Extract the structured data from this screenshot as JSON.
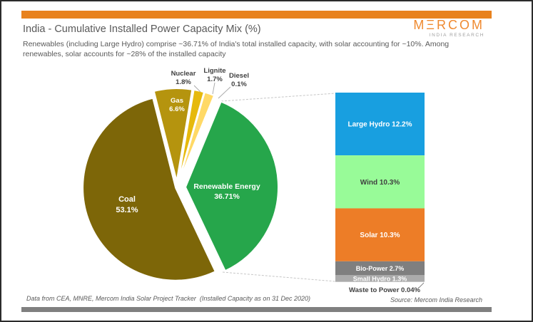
{
  "header": {
    "title": "India - Cumulative Installed Power Capacity Mix (%)",
    "subtitle": "Renewables (including Large Hydro) comprise ~36.71% of India's total installed capacity, with solar accounting for ~10%. Among renewables, solar accounts for ~28% of the installed capacity",
    "logo": {
      "brand": "MΞRCOM",
      "tagline": "INDIA RESEARCH"
    }
  },
  "footer": {
    "left": "Data from CEA, MNRE, Mercom India Solar Project Tracker  (Installed Capacity as on 31 Dec 2020)",
    "right": "Source: Mercom India Research"
  },
  "colors": {
    "accent_orange": "#E8821E",
    "logo_orange": "#EF8A30",
    "footer_bar_gray": "#808080",
    "text_gray": "#595959",
    "connector_gray": "#C6C6C6"
  },
  "chart_data": [
    {
      "type": "pie",
      "title": "India - Cumulative Installed Power Capacity Mix (%)",
      "labels": [
        "Renewable Energy",
        "Coal",
        "Gas",
        "Nuclear",
        "Lignite",
        "Diesel"
      ],
      "values": [
        36.71,
        53.1,
        6.6,
        1.8,
        1.7,
        0.1
      ],
      "display_values": [
        "36.71%",
        "53.1%",
        "6.6%",
        "1.8%",
        "1.7%",
        "0.1%"
      ],
      "colors": [
        "#26A64B",
        "#7D6608",
        "#B5940E",
        "#E6B90C",
        "#FFD966",
        "#FFE699"
      ],
      "start_angle_deg": 22.5,
      "legend_position": "none",
      "label_style": "inside-for-large, callout-for-small"
    },
    {
      "type": "bar",
      "stacked": true,
      "categories": [
        "Large Hydro",
        "Wind",
        "Solar",
        "Bio-Power",
        "Small Hydro",
        "Waste to Power"
      ],
      "values": [
        12.2,
        10.3,
        10.3,
        2.7,
        1.3,
        0.04
      ],
      "display_values": [
        "12.2%",
        "10.3%",
        "10.3%",
        "2.7%",
        "1.3%",
        "0.04%"
      ],
      "colors": [
        "#189FE0",
        "#98FB98",
        "#ED7D27",
        "#7F7F7F",
        "#ABABAB",
        "#E7E7E7"
      ],
      "ylabel": "",
      "xlabel": "",
      "grid": false,
      "note": "breakdown of the Renewable Energy pie slice, connected by dashed leader lines"
    }
  ]
}
